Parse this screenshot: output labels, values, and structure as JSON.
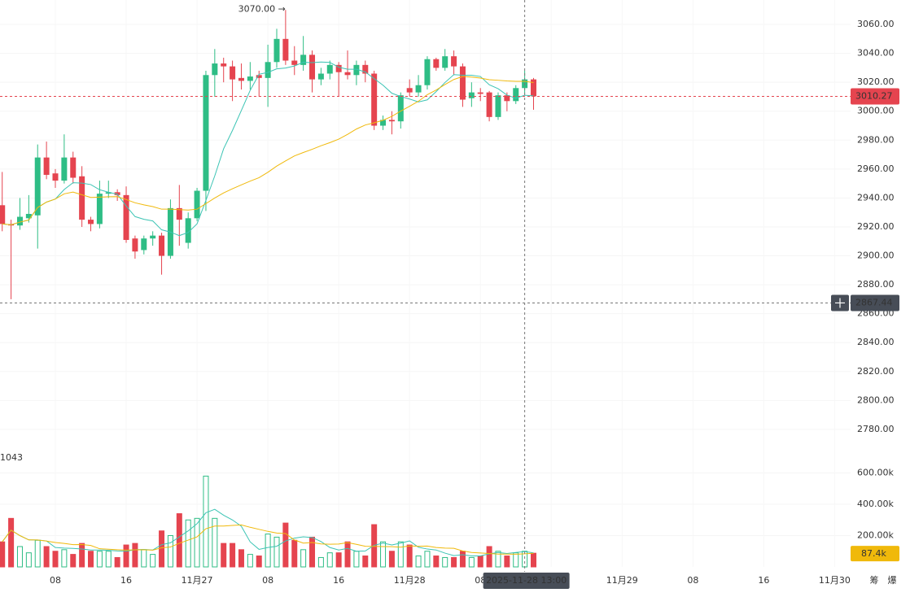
{
  "chart_data": {
    "type": "candlestick",
    "x": [
      "2025-11-26 02:00",
      "2025-11-26 03:00",
      "2025-11-26 04:00",
      "2025-11-26 05:00",
      "2025-11-26 06:00",
      "2025-11-26 07:00",
      "2025-11-26 08:00",
      "2025-11-26 09:00",
      "2025-11-26 10:00",
      "2025-11-26 11:00",
      "2025-11-26 12:00",
      "2025-11-26 13:00",
      "2025-11-26 14:00",
      "2025-11-26 15:00",
      "2025-11-26 16:00",
      "2025-11-26 17:00",
      "2025-11-26 18:00",
      "2025-11-26 19:00",
      "2025-11-26 20:00",
      "2025-11-26 21:00",
      "2025-11-26 22:00",
      "2025-11-26 23:00",
      "2025-11-27 00:00",
      "2025-11-27 01:00",
      "2025-11-27 02:00",
      "2025-11-27 03:00",
      "2025-11-27 04:00",
      "2025-11-27 05:00",
      "2025-11-27 06:00",
      "2025-11-27 07:00",
      "2025-11-27 08:00",
      "2025-11-27 09:00",
      "2025-11-27 10:00",
      "2025-11-27 11:00",
      "2025-11-27 12:00",
      "2025-11-27 13:00",
      "2025-11-27 14:00",
      "2025-11-27 15:00",
      "2025-11-27 16:00",
      "2025-11-27 17:00",
      "2025-11-27 18:00",
      "2025-11-27 19:00",
      "2025-11-27 20:00",
      "2025-11-27 21:00",
      "2025-11-27 22:00",
      "2025-11-27 23:00",
      "2025-11-28 00:00",
      "2025-11-28 01:00",
      "2025-11-28 02:00",
      "2025-11-28 03:00",
      "2025-11-28 04:00",
      "2025-11-28 05:00",
      "2025-11-28 06:00",
      "2025-11-28 07:00",
      "2025-11-28 08:00",
      "2025-11-28 09:00",
      "2025-11-28 10:00",
      "2025-11-28 11:00",
      "2025-11-28 12:00",
      "2025-11-28 13:00",
      "2025-11-28 14:00"
    ],
    "open": [
      2935,
      2922,
      2921,
      2926,
      2928,
      2968,
      2957,
      2952,
      2968,
      2955,
      2925,
      2922,
      2943,
      2944,
      2942,
      2912,
      2904,
      2912,
      2914,
      2900,
      2933,
      2909,
      2926,
      2945,
      3025,
      3033,
      3031,
      3023,
      3021,
      3025,
      3023,
      3034,
      3050,
      3035,
      3032,
      3039,
      3022,
      3026,
      3032,
      3027,
      3025,
      3032,
      3026,
      2990,
      2994,
      2993,
      3016,
      3013,
      3018,
      3036,
      3030,
      3038,
      3031,
      3009,
      3013,
      3013,
      2996,
      3011,
      3007,
      3016,
      3022
    ],
    "high": [
      2958,
      2925,
      2940,
      2942,
      2977,
      2979,
      2960,
      2984,
      2972,
      2962,
      2927,
      2952,
      2952,
      2946,
      2948,
      2914,
      2914,
      2917,
      2916,
      2939,
      2949,
      2930,
      2947,
      3028,
      3043,
      3037,
      3035,
      3033,
      3034,
      3028,
      3046,
      3057,
      3070,
      3045,
      3052,
      3042,
      3030,
      3035,
      3034,
      3042,
      3035,
      3035,
      3028,
      2997,
      3000,
      3013,
      3022,
      3025,
      3038,
      3037,
      3043,
      3042,
      3033,
      3020,
      3016,
      3014,
      3013,
      3013,
      3018,
      3028,
      3023
    ],
    "low": [
      2917,
      2870,
      2918,
      2923,
      2905,
      2953,
      2947,
      2950,
      2950,
      2920,
      2917,
      2919,
      2940,
      2938,
      2909,
      2898,
      2901,
      2907,
      2887,
      2898,
      2907,
      2905,
      2924,
      2931,
      3010,
      3020,
      3007,
      3015,
      3015,
      3010,
      3003,
      3030,
      3032,
      3025,
      3028,
      3013,
      3018,
      3022,
      3010,
      3022,
      3018,
      3020,
      2987,
      2987,
      2984,
      2988,
      3010,
      3010,
      3015,
      3028,
      3028,
      3025,
      3003,
      3003,
      3007,
      2993,
      2994,
      3000,
      3005,
      3012,
      3001
    ],
    "close": [
      2922,
      2921,
      2927,
      2929,
      2968,
      2956,
      2952,
      2968,
      2954,
      2925,
      2922,
      2943,
      2944,
      2942,
      2911,
      2903,
      2912,
      2914,
      2900,
      2933,
      2925,
      2926,
      2945,
      3025,
      3033,
      3031,
      3022,
      3021,
      3024,
      3023,
      3034,
      3050,
      3035,
      3032,
      3039,
      3022,
      3026,
      3032,
      3027,
      3025,
      3032,
      3026,
      2990,
      2994,
      2993,
      3011,
      3013,
      3018,
      3036,
      3030,
      3038,
      3031,
      3008,
      3013,
      3012,
      2996,
      3011,
      3007,
      3016,
      3022,
      3010.27
    ],
    "volume": [
      160000,
      310000,
      130000,
      90000,
      170000,
      130000,
      100000,
      110000,
      80000,
      150000,
      100000,
      100000,
      100000,
      60000,
      140000,
      150000,
      110000,
      80000,
      230000,
      200000,
      340000,
      300000,
      310000,
      580000,
      310000,
      150000,
      150000,
      110000,
      80000,
      70000,
      210000,
      190000,
      280000,
      170000,
      110000,
      190000,
      60000,
      90000,
      90000,
      160000,
      100000,
      70000,
      270000,
      160000,
      100000,
      160000,
      140000,
      70000,
      100000,
      70000,
      60000,
      60000,
      100000,
      60000,
      70000,
      130000,
      100000,
      70000,
      90000,
      100000,
      87400
    ],
    "last_volume_label": "87.4k",
    "colors": {
      "up": "#2ebd85",
      "down": "#e5444f",
      "ma_fast": "#3cc4b4",
      "ma_slow": "#f0b90b"
    },
    "xlim": [
      "2025-11-26 01:45",
      "2025-11-30 01:48"
    ],
    "xticks": [
      {
        "value": "2025-11-26 08:00",
        "label": "08"
      },
      {
        "value": "2025-11-26 16:00",
        "label": "16"
      },
      {
        "value": "2025-11-27 00:00",
        "label": "11月27"
      },
      {
        "value": "2025-11-27 08:00",
        "label": "08"
      },
      {
        "value": "2025-11-27 16:00",
        "label": "16"
      },
      {
        "value": "2025-11-28 00:00",
        "label": "11月28"
      },
      {
        "value": "2025-11-28 08:00",
        "label": "08"
      },
      {
        "value": "2025-11-28 16:00",
        "label": "16"
      },
      {
        "value": "2025-11-29 00:00",
        "label": "11月29"
      },
      {
        "value": "2025-11-29 08:00",
        "label": "08"
      },
      {
        "value": "2025-11-29 16:00",
        "label": "16"
      },
      {
        "value": "2025-11-30 00:00",
        "label": "11月30"
      }
    ],
    "ylim": [
      2770.4,
      3076.9
    ],
    "yticks": [
      {
        "value": 3060,
        "label": "3060.00"
      },
      {
        "value": 3040,
        "label": "3040.00"
      },
      {
        "value": 3020,
        "label": "3020.00"
      },
      {
        "value": 3000,
        "label": "3000.00"
      },
      {
        "value": 2980,
        "label": "2980.00"
      },
      {
        "value": 2960,
        "label": "2960.00"
      },
      {
        "value": 2940,
        "label": "2940.00"
      },
      {
        "value": 2920,
        "label": "2920.00"
      },
      {
        "value": 2900,
        "label": "2900.00"
      },
      {
        "value": 2880,
        "label": "2880.00"
      },
      {
        "value": 2860,
        "label": "2860.00"
      },
      {
        "value": 2840,
        "label": "2840.00"
      },
      {
        "value": 2820,
        "label": "2820.00"
      },
      {
        "value": 2800,
        "label": "2800.00"
      },
      {
        "value": 2780,
        "label": "2780.00"
      }
    ],
    "volume_ylim": [
      0,
      711700
    ],
    "volume_yticks": [
      {
        "value": 200000,
        "label": "200.00k"
      },
      {
        "value": 400000,
        "label": "400.00k"
      },
      {
        "value": 600000,
        "label": "600.00k"
      }
    ],
    "volume_legend": "1043",
    "high_annotation": "3070.00 →",
    "crosshair": {
      "price": 2867.44,
      "time": "2025-11-28 13:00"
    },
    "toolbar": [
      "筹",
      "爆"
    ]
  }
}
